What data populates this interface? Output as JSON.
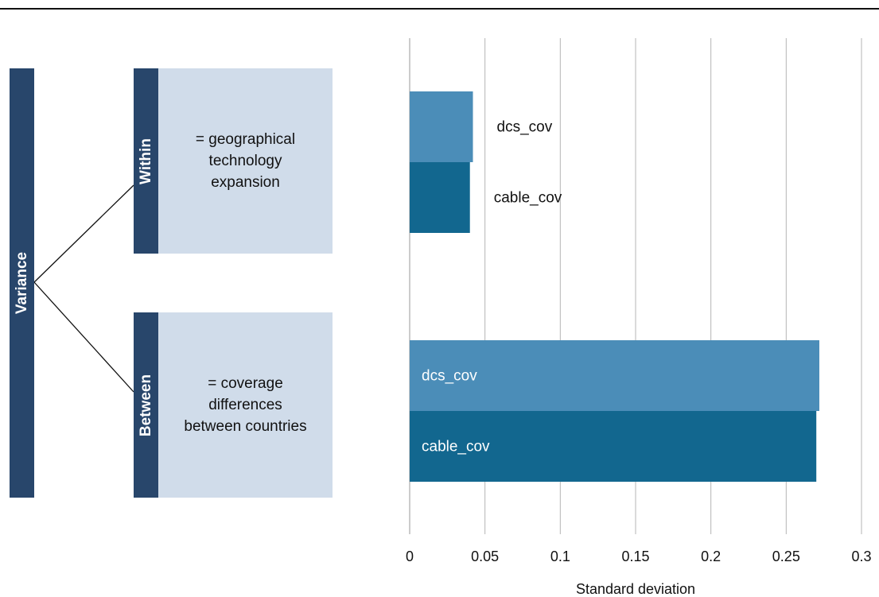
{
  "diagram": {
    "root_label": "Variance",
    "within": {
      "label": "Within",
      "description": "= geographical\ntechnology\nexpansion"
    },
    "between": {
      "label": "Between",
      "description": "= coverage\ndifferences\nbetween countries"
    }
  },
  "colors": {
    "dark_blue": "#28466b",
    "light_box": "#d0dcea",
    "dcs": "#4b8db8",
    "cable": "#12678f"
  },
  "chart_data": {
    "type": "bar",
    "orientation": "horizontal",
    "xlabel": "Standard deviation",
    "xlim": [
      0,
      0.3
    ],
    "xticks": [
      "0",
      "0.05",
      "0.1",
      "0.15",
      "0.2",
      "0.25",
      "0.3"
    ],
    "grid": true,
    "groups": [
      {
        "name": "Within",
        "bars": [
          {
            "label": "dcs_cov",
            "value": 0.042
          },
          {
            "label": "cable_cov",
            "value": 0.04
          }
        ]
      },
      {
        "name": "Between",
        "bars": [
          {
            "label": "dcs_cov",
            "value": 0.272
          },
          {
            "label": "cable_cov",
            "value": 0.27
          }
        ]
      }
    ]
  }
}
